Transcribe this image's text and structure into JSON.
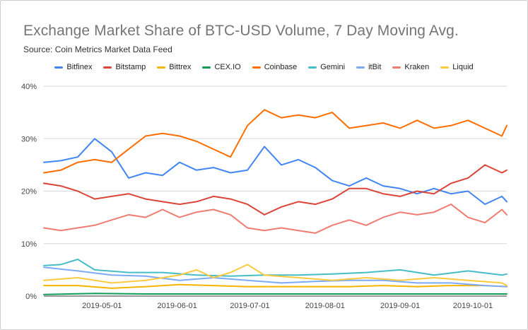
{
  "chart_data": {
    "type": "line",
    "title": "Exchange Market Share of BTC-USD Volume, 7 Day Moving Avg.",
    "subtitle": "Source: Coin Metrics Market Data Feed",
    "ylim": [
      0,
      40
    ],
    "y_ticks": [
      "0%",
      "10%",
      "20%",
      "30%",
      "40%"
    ],
    "x_tick_labels": [
      "2019-05-01",
      "2019-06-01",
      "2019-07-01",
      "2019-08-01",
      "2019-09-01",
      "2019-10-01"
    ],
    "x_tick_dates": [
      "2019-05-01",
      "2019-06-01",
      "2019-07-01",
      "2019-08-01",
      "2019-09-01",
      "2019-10-01"
    ],
    "x_range": [
      "2019-04-07",
      "2019-10-15"
    ],
    "grid": true,
    "legend_position": "top",
    "series": [
      {
        "name": "Bitfinex",
        "color": "#4285f4",
        "dates": [
          "2019-04-07",
          "2019-04-14",
          "2019-04-21",
          "2019-04-28",
          "2019-05-05",
          "2019-05-12",
          "2019-05-19",
          "2019-05-26",
          "2019-06-02",
          "2019-06-09",
          "2019-06-16",
          "2019-06-23",
          "2019-06-30",
          "2019-07-07",
          "2019-07-14",
          "2019-07-21",
          "2019-07-28",
          "2019-08-04",
          "2019-08-11",
          "2019-08-18",
          "2019-08-25",
          "2019-09-01",
          "2019-09-08",
          "2019-09-15",
          "2019-09-22",
          "2019-09-29",
          "2019-10-06",
          "2019-10-13",
          "2019-10-15"
        ],
        "values": [
          25.5,
          25.8,
          26.5,
          30.0,
          27.5,
          22.5,
          23.5,
          23.0,
          25.5,
          24.0,
          24.5,
          23.5,
          24.0,
          28.5,
          25.0,
          26.0,
          24.5,
          22.0,
          21.0,
          22.5,
          21.0,
          20.5,
          19.5,
          20.5,
          19.5,
          20.0,
          17.5,
          19.0,
          18.0
        ]
      },
      {
        "name": "Bitstamp",
        "color": "#db4437",
        "dates": [
          "2019-04-07",
          "2019-04-14",
          "2019-04-21",
          "2019-04-28",
          "2019-05-05",
          "2019-05-12",
          "2019-05-19",
          "2019-05-26",
          "2019-06-02",
          "2019-06-09",
          "2019-06-16",
          "2019-06-23",
          "2019-06-30",
          "2019-07-07",
          "2019-07-14",
          "2019-07-21",
          "2019-07-28",
          "2019-08-04",
          "2019-08-11",
          "2019-08-18",
          "2019-08-25",
          "2019-09-01",
          "2019-09-08",
          "2019-09-15",
          "2019-09-22",
          "2019-09-29",
          "2019-10-06",
          "2019-10-13",
          "2019-10-15"
        ],
        "values": [
          21.5,
          21.0,
          20.0,
          18.5,
          19.0,
          19.5,
          18.5,
          18.0,
          17.5,
          18.0,
          19.0,
          18.5,
          17.5,
          15.5,
          17.0,
          18.0,
          17.5,
          18.5,
          20.5,
          20.5,
          19.5,
          19.0,
          20.0,
          19.5,
          21.5,
          22.5,
          25.0,
          23.5,
          24.0
        ]
      },
      {
        "name": "Bittrex",
        "color": "#f4b400",
        "dates": [
          "2019-04-07",
          "2019-04-21",
          "2019-05-05",
          "2019-05-19",
          "2019-06-02",
          "2019-06-16",
          "2019-06-30",
          "2019-07-14",
          "2019-07-28",
          "2019-08-11",
          "2019-08-25",
          "2019-09-08",
          "2019-09-22",
          "2019-10-06",
          "2019-10-15"
        ],
        "values": [
          2.0,
          2.0,
          1.5,
          1.8,
          2.2,
          2.0,
          1.8,
          1.8,
          1.8,
          1.8,
          2.0,
          1.8,
          2.0,
          2.0,
          1.8
        ]
      },
      {
        "name": "CEX.IO",
        "color": "#0f9d58",
        "dates": [
          "2019-04-07",
          "2019-04-28",
          "2019-05-19",
          "2019-06-09",
          "2019-06-30",
          "2019-07-21",
          "2019-08-11",
          "2019-09-01",
          "2019-09-22",
          "2019-10-15"
        ],
        "values": [
          0.3,
          0.5,
          0.4,
          0.4,
          0.4,
          0.4,
          0.4,
          0.4,
          0.4,
          0.4
        ]
      },
      {
        "name": "Coinbase",
        "color": "#ff6d00",
        "dates": [
          "2019-04-07",
          "2019-04-14",
          "2019-04-21",
          "2019-04-28",
          "2019-05-05",
          "2019-05-12",
          "2019-05-19",
          "2019-05-26",
          "2019-06-02",
          "2019-06-09",
          "2019-06-16",
          "2019-06-23",
          "2019-06-30",
          "2019-07-07",
          "2019-07-14",
          "2019-07-21",
          "2019-07-28",
          "2019-08-04",
          "2019-08-11",
          "2019-08-18",
          "2019-08-25",
          "2019-09-01",
          "2019-09-08",
          "2019-09-15",
          "2019-09-22",
          "2019-09-29",
          "2019-10-06",
          "2019-10-13",
          "2019-10-15"
        ],
        "values": [
          23.5,
          24.0,
          25.5,
          26.0,
          25.5,
          28.0,
          30.5,
          31.0,
          30.5,
          29.5,
          28.0,
          26.5,
          32.5,
          35.5,
          34.0,
          34.5,
          34.0,
          35.0,
          32.0,
          32.5,
          33.0,
          32.0,
          33.5,
          32.0,
          32.5,
          33.5,
          32.0,
          30.5,
          32.5
        ]
      },
      {
        "name": "Gemini",
        "color": "#46bdc6",
        "dates": [
          "2019-04-07",
          "2019-04-14",
          "2019-04-21",
          "2019-04-28",
          "2019-05-12",
          "2019-05-26",
          "2019-06-09",
          "2019-06-23",
          "2019-07-07",
          "2019-07-21",
          "2019-08-04",
          "2019-08-18",
          "2019-09-01",
          "2019-09-15",
          "2019-09-29",
          "2019-10-13",
          "2019-10-15"
        ],
        "values": [
          5.8,
          6.0,
          7.0,
          5.0,
          4.5,
          4.5,
          4.0,
          3.8,
          4.0,
          4.0,
          4.2,
          4.5,
          5.0,
          4.0,
          4.8,
          4.0,
          4.2
        ]
      },
      {
        "name": "itBit",
        "color": "#7baaf7",
        "dates": [
          "2019-04-07",
          "2019-04-21",
          "2019-05-05",
          "2019-05-19",
          "2019-06-02",
          "2019-06-16",
          "2019-06-30",
          "2019-07-14",
          "2019-07-28",
          "2019-08-11",
          "2019-08-25",
          "2019-09-08",
          "2019-09-22",
          "2019-10-06",
          "2019-10-15"
        ],
        "values": [
          5.5,
          4.8,
          4.0,
          3.8,
          3.0,
          3.5,
          3.0,
          2.5,
          2.8,
          3.0,
          3.0,
          2.5,
          2.5,
          2.0,
          1.8
        ]
      },
      {
        "name": "Kraken",
        "color": "#f07b72",
        "dates": [
          "2019-04-07",
          "2019-04-14",
          "2019-04-21",
          "2019-04-28",
          "2019-05-05",
          "2019-05-12",
          "2019-05-19",
          "2019-05-26",
          "2019-06-02",
          "2019-06-09",
          "2019-06-16",
          "2019-06-23",
          "2019-06-30",
          "2019-07-07",
          "2019-07-14",
          "2019-07-21",
          "2019-07-28",
          "2019-08-04",
          "2019-08-11",
          "2019-08-18",
          "2019-08-25",
          "2019-09-01",
          "2019-09-08",
          "2019-09-15",
          "2019-09-22",
          "2019-09-29",
          "2019-10-06",
          "2019-10-13",
          "2019-10-15"
        ],
        "values": [
          13.0,
          12.5,
          13.0,
          13.5,
          14.5,
          15.5,
          15.0,
          16.5,
          15.0,
          16.0,
          16.5,
          15.5,
          13.0,
          12.5,
          13.0,
          12.5,
          12.0,
          13.5,
          14.5,
          13.5,
          15.0,
          16.0,
          15.5,
          16.0,
          17.5,
          15.0,
          14.0,
          16.5,
          15.5
        ]
      },
      {
        "name": "Liquid",
        "color": "#fbca3f",
        "dates": [
          "2019-04-07",
          "2019-04-21",
          "2019-05-05",
          "2019-05-19",
          "2019-06-02",
          "2019-06-09",
          "2019-06-16",
          "2019-06-23",
          "2019-06-30",
          "2019-07-07",
          "2019-07-21",
          "2019-08-04",
          "2019-08-18",
          "2019-09-01",
          "2019-09-15",
          "2019-09-29",
          "2019-10-13",
          "2019-10-15"
        ],
        "values": [
          3.0,
          3.5,
          2.5,
          3.0,
          4.0,
          5.0,
          3.5,
          4.5,
          6.0,
          4.0,
          3.5,
          3.0,
          3.5,
          3.0,
          3.5,
          3.0,
          2.5,
          2.0
        ]
      }
    ]
  }
}
